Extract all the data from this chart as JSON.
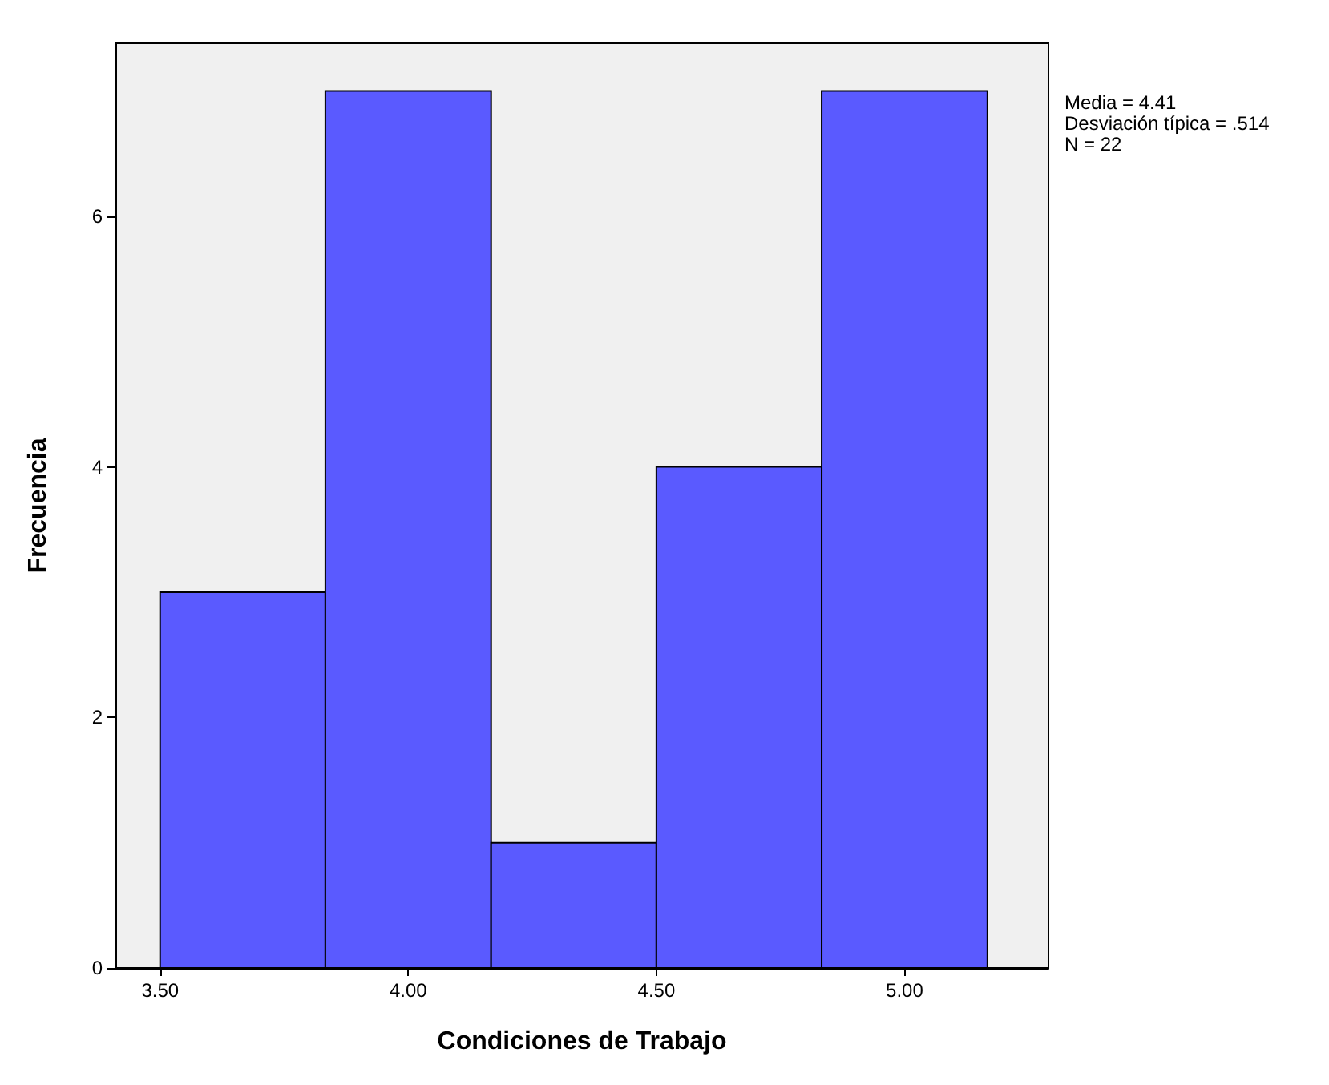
{
  "chart_data": {
    "type": "histogram",
    "xlabel": "Condiciones de Trabajo",
    "ylabel": "Frecuencia",
    "bins": [
      3.5,
      3.833,
      4.167,
      4.5,
      4.833,
      5.167
    ],
    "values": [
      3,
      7,
      1,
      4,
      7
    ],
    "color": "#5a5aff",
    "xlim": [
      3.41,
      5.29
    ],
    "xticks": [
      {
        "value": 3.5,
        "label": "3.50"
      },
      {
        "value": 4.0,
        "label": "4.00"
      },
      {
        "value": 4.5,
        "label": "4.50"
      },
      {
        "value": 5.0,
        "label": "5.00"
      }
    ],
    "ylim": [
      0,
      7.38
    ],
    "yticks": [
      0,
      2,
      4,
      6
    ],
    "grid": false,
    "annotations": [
      "Media = 4.41",
      "Desviación típica = .514",
      "N = 22"
    ]
  }
}
